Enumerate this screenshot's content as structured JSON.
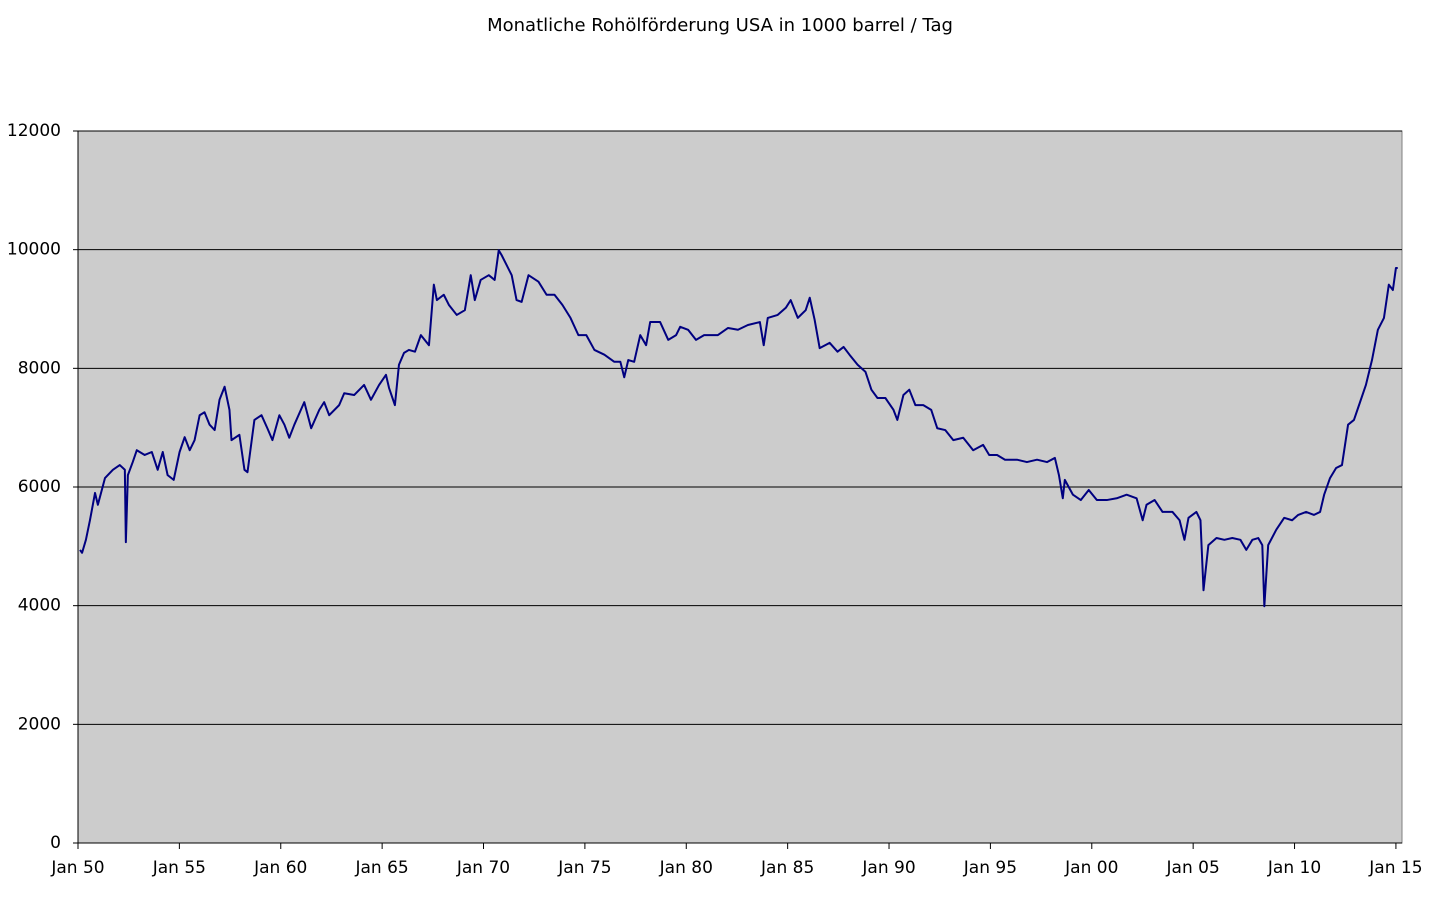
{
  "chart_data": {
    "type": "line",
    "title": "Monatliche Rohölförderung USA in 1000 barrel / Tag",
    "color": "#000080",
    "grid": true,
    "xlim": [
      1950,
      2015.3
    ],
    "xticks": [
      {
        "value": 1950,
        "label": "Jan 50"
      },
      {
        "value": 1955,
        "label": "Jan 55"
      },
      {
        "value": 1960,
        "label": "Jan 60"
      },
      {
        "value": 1965,
        "label": "Jan 65"
      },
      {
        "value": 1970,
        "label": "Jan 70"
      },
      {
        "value": 1975,
        "label": "Jan 75"
      },
      {
        "value": 1980,
        "label": "Jan 80"
      },
      {
        "value": 1985,
        "label": "Jan 85"
      },
      {
        "value": 1990,
        "label": "Jan 90"
      },
      {
        "value": 1995,
        "label": "Jan 95"
      },
      {
        "value": 2000,
        "label": "Jan 00"
      },
      {
        "value": 2005,
        "label": "Jan 05"
      },
      {
        "value": 2010,
        "label": "Jan 10"
      },
      {
        "value": 2015,
        "label": "Jan 15"
      }
    ],
    "ylim": [
      0,
      12000
    ],
    "yticks": [
      0,
      2000,
      4000,
      6000,
      8000,
      10000,
      12000
    ],
    "x": [
      1950.1,
      1950.2,
      1950.39,
      1950.59,
      1950.84,
      1950.98,
      1951.33,
      1951.72,
      1952.06,
      1952.31,
      1952.36,
      1952.46,
      1952.7,
      1952.9,
      1953.29,
      1953.64,
      1953.93,
      1954.18,
      1954.42,
      1954.72,
      1955.01,
      1955.26,
      1955.51,
      1955.75,
      1956.0,
      1956.24,
      1956.49,
      1956.74,
      1956.98,
      1957.23,
      1957.47,
      1957.57,
      1957.96,
      1958.21,
      1958.36,
      1958.7,
      1959.05,
      1959.34,
      1959.59,
      1959.93,
      1960.18,
      1960.42,
      1960.67,
      1961.16,
      1961.5,
      1961.9,
      1962.14,
      1962.39,
      1962.88,
      1963.13,
      1963.62,
      1964.11,
      1964.45,
      1964.85,
      1965.19,
      1965.34,
      1965.63,
      1965.83,
      1966.08,
      1966.32,
      1966.62,
      1966.91,
      1967.31,
      1967.55,
      1967.7,
      1968.04,
      1968.29,
      1968.68,
      1969.08,
      1969.37,
      1969.57,
      1969.86,
      1970.26,
      1970.55,
      1970.75,
      1970.89,
      1971.14,
      1971.39,
      1971.63,
      1971.88,
      1972.22,
      1972.71,
      1973.11,
      1973.5,
      1973.89,
      1974.29,
      1974.68,
      1975.07,
      1975.47,
      1975.96,
      1976.45,
      1976.75,
      1976.94,
      1977.14,
      1977.43,
      1977.73,
      1978.02,
      1978.22,
      1978.71,
      1979.11,
      1979.5,
      1979.7,
      1980.09,
      1980.48,
      1980.88,
      1981.56,
      1982.06,
      1982.55,
      1983.04,
      1983.63,
      1983.82,
      1984.02,
      1984.51,
      1984.91,
      1985.15,
      1985.5,
      1985.89,
      1986.09,
      1986.33,
      1986.58,
      1987.07,
      1987.46,
      1987.76,
      1988.05,
      1988.45,
      1988.84,
      1989.13,
      1989.43,
      1989.82,
      1990.22,
      1990.41,
      1990.71,
      1991.0,
      1991.3,
      1991.69,
      1992.08,
      1992.38,
      1992.77,
      1993.17,
      1993.66,
      1994.15,
      1994.64,
      1994.94,
      1995.33,
      1995.72,
      1996.31,
      1996.8,
      1997.3,
      1997.79,
      1998.18,
      1998.38,
      1998.57,
      1998.67,
      1999.07,
      1999.46,
      1999.85,
      2000.25,
      2000.74,
      2001.23,
      2001.72,
      2002.21,
      2002.51,
      2002.7,
      2003.1,
      2003.49,
      2003.98,
      2004.33,
      2004.57,
      2004.77,
      2005.16,
      2005.36,
      2005.51,
      2005.75,
      2006.15,
      2006.54,
      2006.93,
      2007.33,
      2007.62,
      2007.92,
      2008.21,
      2008.41,
      2008.51,
      2008.7,
      2009.1,
      2009.49,
      2009.88,
      2010.18,
      2010.57,
      2010.96,
      2011.26,
      2011.46,
      2011.75,
      2012.05,
      2012.34,
      2012.64,
      2012.93,
      2013.18,
      2013.52,
      2013.82,
      2014.11,
      2014.41,
      2014.65,
      2014.85,
      2015.0,
      2015.09
    ],
    "values": [
      4940,
      4890,
      5110,
      5440,
      5900,
      5700,
      6150,
      6290,
      6370,
      6290,
      5070,
      6200,
      6420,
      6620,
      6540,
      6590,
      6290,
      6590,
      6200,
      6120,
      6590,
      6840,
      6620,
      6790,
      7210,
      7260,
      7050,
      6960,
      7470,
      7690,
      7300,
      6790,
      6880,
      6290,
      6250,
      7130,
      7210,
      6990,
      6790,
      7210,
      7050,
      6830,
      7050,
      7430,
      6990,
      7300,
      7430,
      7210,
      7380,
      7580,
      7550,
      7720,
      7470,
      7720,
      7890,
      7670,
      7380,
      8060,
      8260,
      8310,
      8280,
      8560,
      8390,
      9410,
      9150,
      9240,
      9070,
      8900,
      8980,
      9570,
      9150,
      9490,
      9570,
      9490,
      9990,
      9910,
      9740,
      9570,
      9150,
      9120,
      9570,
      9460,
      9240,
      9240,
      9070,
      8850,
      8560,
      8560,
      8310,
      8230,
      8110,
      8110,
      7850,
      8140,
      8110,
      8560,
      8390,
      8780,
      8780,
      8480,
      8560,
      8700,
      8650,
      8480,
      8560,
      8560,
      8680,
      8650,
      8730,
      8780,
      8390,
      8850,
      8900,
      9020,
      9150,
      8850,
      8980,
      9190,
      8820,
      8340,
      8430,
      8280,
      8360,
      8230,
      8060,
      7940,
      7640,
      7500,
      7500,
      7300,
      7130,
      7550,
      7640,
      7380,
      7380,
      7300,
      6990,
      6960,
      6790,
      6830,
      6620,
      6710,
      6540,
      6540,
      6460,
      6460,
      6420,
      6460,
      6420,
      6490,
      6200,
      5810,
      6120,
      5870,
      5780,
      5950,
      5780,
      5780,
      5810,
      5870,
      5810,
      5440,
      5700,
      5780,
      5580,
      5580,
      5440,
      5110,
      5480,
      5580,
      5440,
      4260,
      5020,
      5140,
      5110,
      5140,
      5110,
      4940,
      5110,
      5140,
      5020,
      3990,
      5020,
      5280,
      5480,
      5440,
      5530,
      5580,
      5530,
      5580,
      5870,
      6150,
      6320,
      6370,
      7050,
      7130,
      7380,
      7720,
      8140,
      8650,
      8850,
      9410,
      9320,
      9690,
      9690
    ]
  }
}
